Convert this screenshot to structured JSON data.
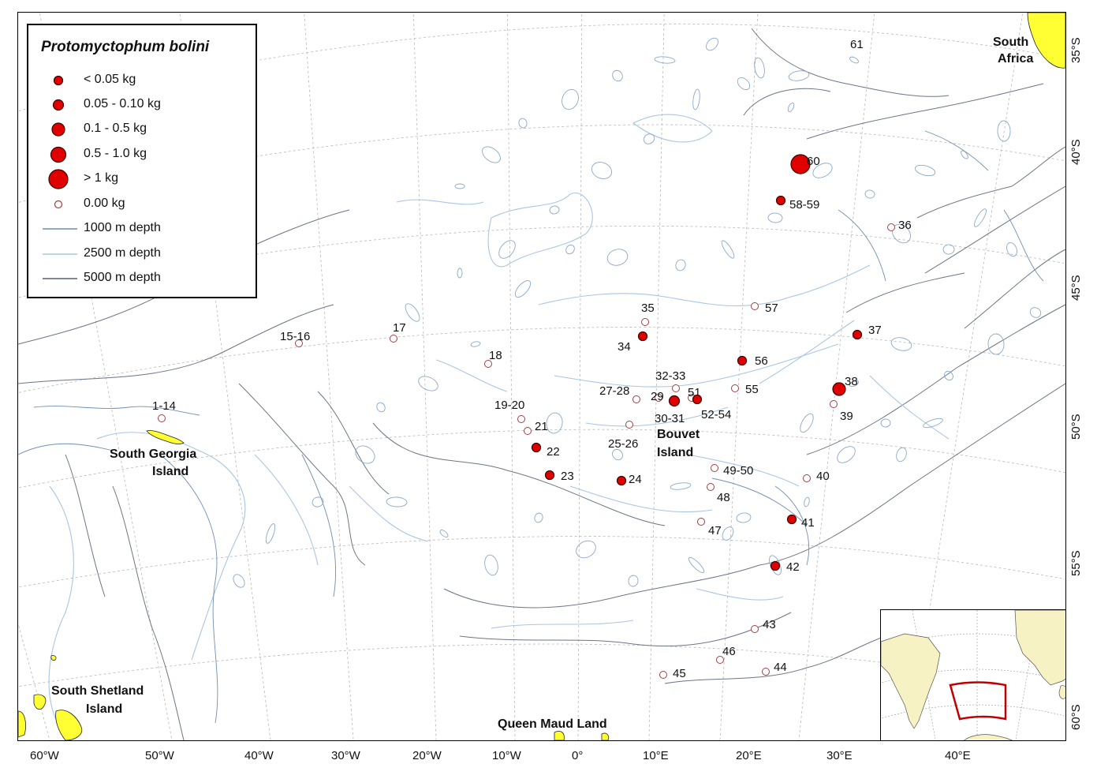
{
  "legend": {
    "title": "Protomyctophum bolini",
    "items": [
      {
        "label": "< 0.05 kg"
      },
      {
        "label": "0.05 - 0.10 kg"
      },
      {
        "label": "0.1 - 0.5 kg"
      },
      {
        "label": "0.5 - 1.0 kg"
      },
      {
        "label": "> 1 kg"
      },
      {
        "label": "0.00 kg"
      },
      {
        "label": "1000 m depth",
        "color": "#6f8fb0"
      },
      {
        "label": "2500 m depth",
        "color": "#a9c6e2"
      },
      {
        "label": "5000 m depth",
        "color": "#556070"
      }
    ]
  },
  "colors": {
    "catch_fill": "#e00000",
    "zero_fill": "#ffffff",
    "zero_stroke": "#a04040",
    "land": "#ffff33",
    "inset_land": "#f7f2c4",
    "inset_box": "#c00000"
  },
  "lon_labels": [
    "60°W",
    "50°W",
    "40°W",
    "30°W",
    "20°W",
    "10°W",
    "0°",
    "10°E",
    "20°E",
    "30°E",
    "40°E"
  ],
  "lat_labels": [
    "35°S",
    "40°S",
    "45°S",
    "50°S",
    "55°S",
    "60°S"
  ],
  "places": {
    "south_africa_1": "South",
    "south_africa_2": "Africa",
    "south_georgia_1": "South Georgia",
    "south_georgia_2": "Island",
    "south_shetland_1": "South Shetland",
    "south_shetland_2": "Island",
    "bouvet_1": "Bouvet",
    "bouvet_2": "Island",
    "queen_maud": "Queen Maud Land"
  },
  "stations": [
    {
      "label": "1-14",
      "cls": "zero"
    },
    {
      "label": "15-16",
      "cls": "zero"
    },
    {
      "label": "17",
      "cls": "zero"
    },
    {
      "label": "18",
      "cls": "zero"
    },
    {
      "label": "19-20",
      "cls": "zero"
    },
    {
      "label": "21",
      "cls": "zero"
    },
    {
      "label": "22",
      "cls": "c0"
    },
    {
      "label": "23",
      "cls": "c0"
    },
    {
      "label": "24",
      "cls": "c0"
    },
    {
      "label": "25-26",
      "cls": "zero"
    },
    {
      "label": "27-28",
      "cls": "zero"
    },
    {
      "label": "29",
      "cls": "zero"
    },
    {
      "label": "30-31",
      "cls": "c1"
    },
    {
      "label": "32-33",
      "cls": "zero"
    },
    {
      "label": "34",
      "cls": "c0"
    },
    {
      "label": "35",
      "cls": "zero"
    },
    {
      "label": "36",
      "cls": "zero"
    },
    {
      "label": "37",
      "cls": "c0"
    },
    {
      "label": "38",
      "cls": "c2"
    },
    {
      "label": "39",
      "cls": "zero"
    },
    {
      "label": "40",
      "cls": "zero"
    },
    {
      "label": "41",
      "cls": "c0"
    },
    {
      "label": "42",
      "cls": "c0"
    },
    {
      "label": "43",
      "cls": "zero"
    },
    {
      "label": "44",
      "cls": "zero"
    },
    {
      "label": "45",
      "cls": "zero"
    },
    {
      "label": "46",
      "cls": "zero"
    },
    {
      "label": "47",
      "cls": "zero"
    },
    {
      "label": "48",
      "cls": "zero"
    },
    {
      "label": "49-50",
      "cls": "zero"
    },
    {
      "label": "51",
      "cls": "zero"
    },
    {
      "label": "52-54",
      "cls": "c0"
    },
    {
      "label": "55",
      "cls": "zero"
    },
    {
      "label": "56",
      "cls": "c0"
    },
    {
      "label": "57",
      "cls": "zero"
    },
    {
      "label": "58-59",
      "cls": "c0"
    },
    {
      "label": "60",
      "cls": "c4"
    },
    {
      "label": "61",
      "cls": ""
    }
  ]
}
